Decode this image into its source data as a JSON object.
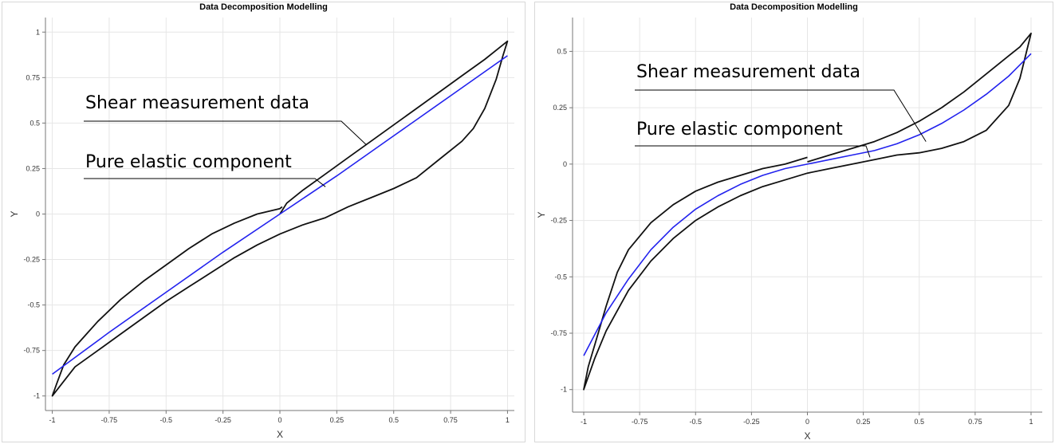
{
  "colors": {
    "measurement": "#111111",
    "elastic": "#2222ee",
    "grid": "#e6e6e6"
  },
  "chart_data": [
    {
      "type": "line",
      "title": "Data Decomposition Modelling",
      "xlabel": "X",
      "ylabel": "Y",
      "xlim": [
        -1.03,
        1.03
      ],
      "ylim": [
        -1.08,
        1.08
      ],
      "xticks": [
        "-1",
        "-0.75",
        "-0.5",
        "-0.25",
        "0",
        "0.25",
        "0.5",
        "0.75",
        "1"
      ],
      "yticks": [
        "-1",
        "-0.75",
        "-0.5",
        "-0.25",
        "0",
        "0.25",
        "0.5",
        "0.75",
        "1"
      ],
      "grid": true,
      "annotations": [
        {
          "text": "Shear measurement data",
          "target": [
            0.38,
            0.38
          ]
        },
        {
          "text": "Pure elastic component",
          "target": [
            0.2,
            0.15
          ]
        }
      ],
      "series": [
        {
          "role": "measurement",
          "x": [
            0,
            0.03,
            0.1,
            0.2,
            0.3,
            0.4,
            0.5,
            0.6,
            0.7,
            0.8,
            0.9,
            0.95,
            1.0,
            0.98,
            0.95,
            0.9,
            0.85,
            0.8,
            0.7,
            0.6,
            0.5,
            0.4,
            0.3,
            0.2,
            0.1,
            0.0,
            -0.1,
            -0.2,
            -0.3,
            -0.4,
            -0.5,
            -0.6,
            -0.7,
            -0.8,
            -0.9,
            -1.0,
            -0.98,
            -0.95,
            -0.9,
            -0.85,
            -0.8,
            -0.7,
            -0.6,
            -0.5,
            -0.4,
            -0.3,
            -0.2,
            -0.1,
            0.0,
            0.01
          ],
          "y": [
            0,
            0.06,
            0.13,
            0.22,
            0.31,
            0.4,
            0.49,
            0.58,
            0.67,
            0.76,
            0.85,
            0.9,
            0.95,
            0.87,
            0.74,
            0.58,
            0.47,
            0.4,
            0.3,
            0.2,
            0.14,
            0.09,
            0.04,
            -0.02,
            -0.06,
            -0.11,
            -0.17,
            -0.24,
            -0.32,
            -0.4,
            -0.48,
            -0.57,
            -0.66,
            -0.75,
            -0.84,
            -1.0,
            -0.93,
            -0.83,
            -0.73,
            -0.66,
            -0.59,
            -0.47,
            -0.37,
            -0.28,
            -0.19,
            -0.11,
            -0.05,
            0.0,
            0.03,
            0.04
          ]
        },
        {
          "role": "elastic",
          "x": [
            -1,
            -0.75,
            -0.5,
            -0.25,
            0,
            0.25,
            0.5,
            0.75,
            1
          ],
          "y": [
            -0.88,
            -0.65,
            -0.43,
            -0.21,
            0.0,
            0.21,
            0.43,
            0.65,
            0.87
          ]
        }
      ]
    },
    {
      "type": "line",
      "title": "Data Decomposition Modelling",
      "xlabel": "X",
      "ylabel": "Y",
      "xlim": [
        -1.05,
        1.05
      ],
      "ylim": [
        -1.1,
        0.65
      ],
      "xticks": [
        "-1",
        "-0.75",
        "-0.5",
        "-0.25",
        "0",
        "0.25",
        "0.5",
        "0.75",
        "1"
      ],
      "yticks": [
        "-1",
        "-0.75",
        "-0.5",
        "-0.25",
        "0",
        "0.25",
        "0.5"
      ],
      "grid": true,
      "annotations": [
        {
          "text": "Shear measurement data",
          "target": [
            0.53,
            0.1
          ]
        },
        {
          "text": "Pure elastic component",
          "target": [
            0.28,
            0.03
          ]
        }
      ],
      "series": [
        {
          "role": "measurement",
          "x": [
            0,
            0.1,
            0.2,
            0.3,
            0.4,
            0.5,
            0.6,
            0.7,
            0.8,
            0.9,
            0.95,
            1.0,
            0.98,
            0.95,
            0.9,
            0.8,
            0.7,
            0.6,
            0.5,
            0.4,
            0.3,
            0.2,
            0.1,
            0.0,
            -0.1,
            -0.2,
            -0.3,
            -0.4,
            -0.5,
            -0.6,
            -0.7,
            -0.8,
            -0.9,
            -0.95,
            -1.0,
            -0.98,
            -0.95,
            -0.9,
            -0.85,
            -0.8,
            -0.7,
            -0.6,
            -0.5,
            -0.4,
            -0.3,
            -0.2,
            -0.1,
            0.0
          ],
          "y": [
            0.01,
            0.04,
            0.07,
            0.1,
            0.14,
            0.19,
            0.25,
            0.32,
            0.4,
            0.48,
            0.52,
            0.58,
            0.5,
            0.38,
            0.26,
            0.15,
            0.1,
            0.07,
            0.05,
            0.04,
            0.02,
            0.0,
            -0.02,
            -0.04,
            -0.07,
            -0.1,
            -0.14,
            -0.19,
            -0.25,
            -0.33,
            -0.43,
            -0.56,
            -0.74,
            -0.86,
            -1.0,
            -0.9,
            -0.8,
            -0.63,
            -0.48,
            -0.38,
            -0.26,
            -0.18,
            -0.12,
            -0.08,
            -0.05,
            -0.02,
            0.0,
            0.03
          ]
        },
        {
          "role": "elastic",
          "x": [
            -1,
            -0.9,
            -0.8,
            -0.7,
            -0.6,
            -0.5,
            -0.4,
            -0.3,
            -0.2,
            -0.1,
            0,
            0.1,
            0.2,
            0.3,
            0.4,
            0.5,
            0.6,
            0.7,
            0.8,
            0.9,
            1
          ],
          "y": [
            -0.85,
            -0.66,
            -0.51,
            -0.38,
            -0.28,
            -0.2,
            -0.14,
            -0.09,
            -0.05,
            -0.02,
            0.0,
            0.02,
            0.04,
            0.06,
            0.09,
            0.13,
            0.18,
            0.24,
            0.31,
            0.39,
            0.49
          ]
        }
      ]
    }
  ]
}
